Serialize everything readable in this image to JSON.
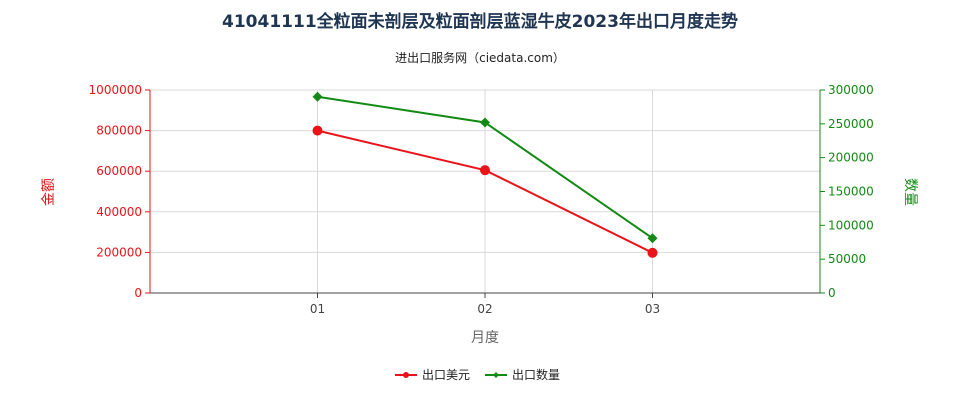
{
  "chart_data": {
    "type": "line",
    "title": "41041111全粒面未剖层及粒面剖层蓝湿牛皮2023年出口月度走势",
    "subtitle": "进出口服务网（ciedata.com）",
    "xlabel": "月度",
    "ylabel_left": "金额",
    "ylabel_right": "数量",
    "categories": [
      "01",
      "02",
      "03"
    ],
    "ylim_left": [
      0,
      1000000
    ],
    "ylim_right": [
      0,
      300000
    ],
    "yticks_left": [
      "0",
      "200000",
      "400000",
      "600000",
      "800000",
      "1000000"
    ],
    "yticks_right": [
      "0",
      "50000",
      "100000",
      "150000",
      "200000",
      "250000",
      "300000"
    ],
    "grid": true,
    "legend_position": "bottom",
    "series": [
      {
        "name": "出口美元",
        "axis": "left",
        "color": "#e8141a",
        "marker": "circle",
        "values": [
          800000,
          605000,
          198000
        ]
      },
      {
        "name": "出口数量",
        "axis": "right",
        "color": "#138a13",
        "marker": "diamond",
        "values": [
          290000,
          252000,
          81000
        ]
      }
    ]
  }
}
